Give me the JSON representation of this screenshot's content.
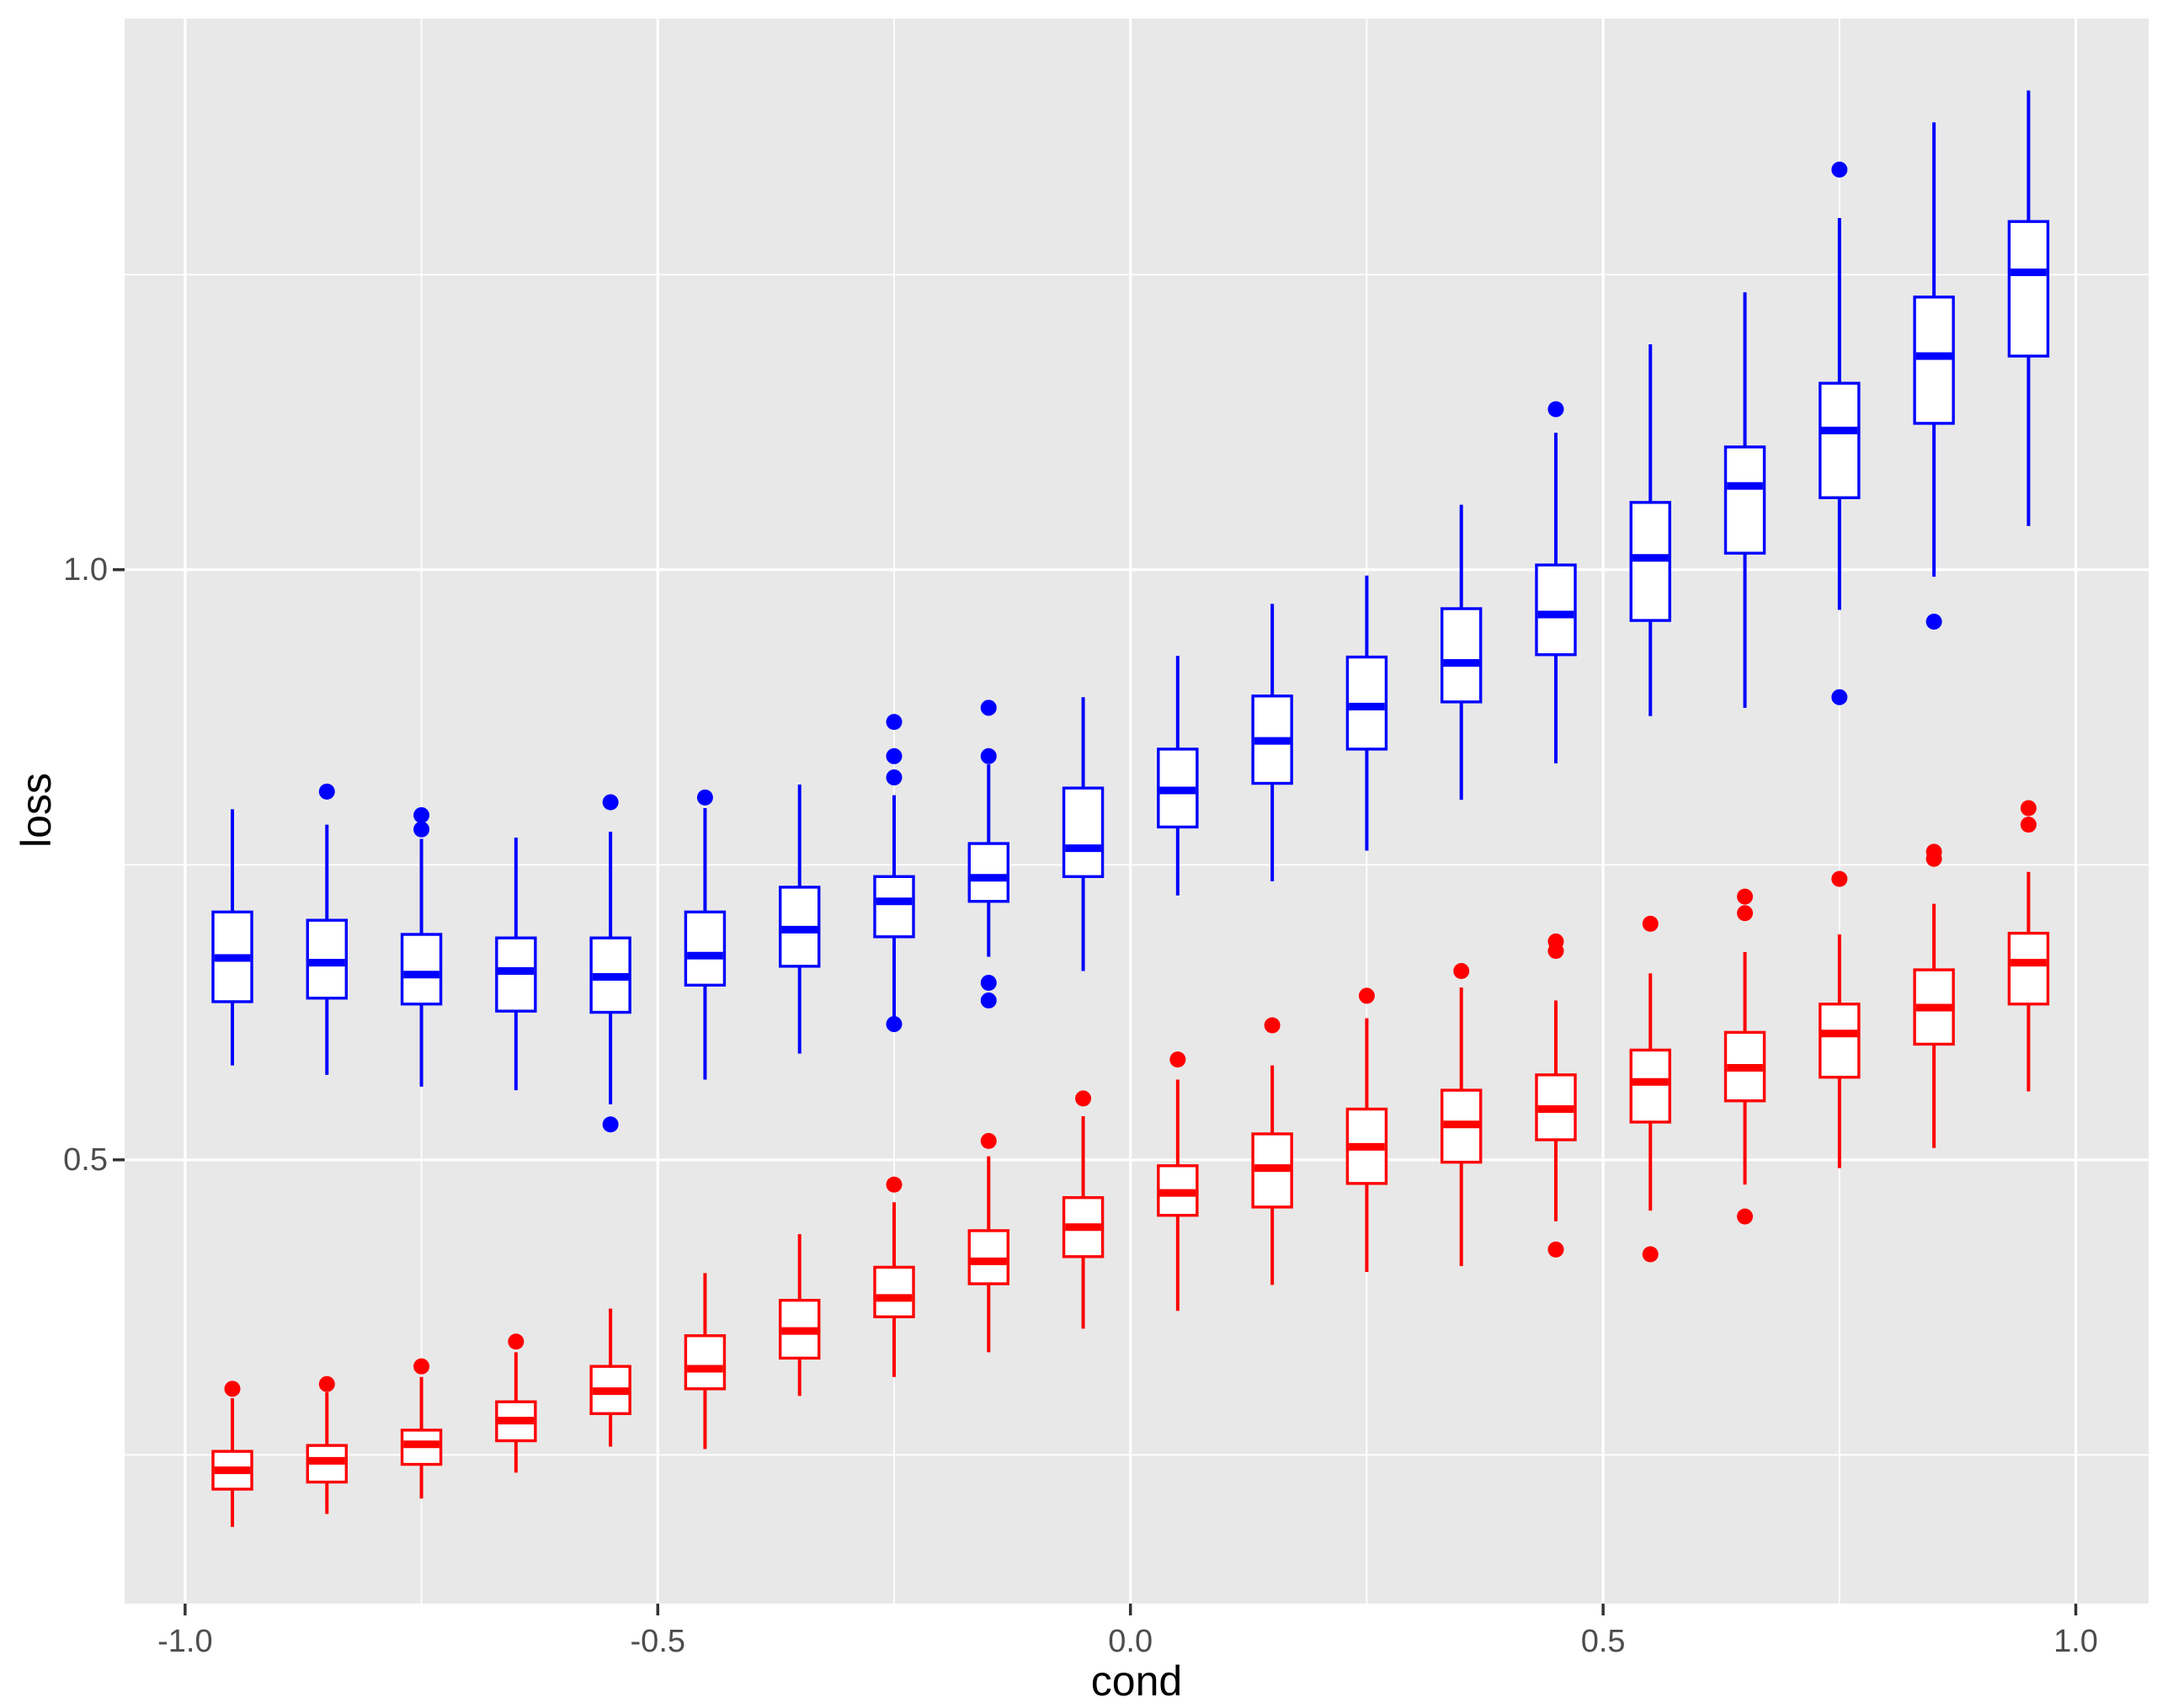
{
  "figure": {
    "background": "#FFFFFF",
    "panel_background": "#E8E8E8",
    "grid_color": "#FFFFFF",
    "tick_mark_color": "#333333",
    "axis_text_color": "#4D4D4D",
    "axis_title_color": "#000000",
    "box_fill": "#FFFFFF"
  },
  "axes": {
    "x": {
      "label": "cond",
      "ticks": [
        -1.0,
        -0.5,
        0.0,
        0.5,
        1.0
      ],
      "tick_labels": [
        "-1.0",
        "-0.5",
        "0.0",
        "0.5",
        "1.0"
      ],
      "minor_ticks": [
        -0.75,
        -0.25,
        0.25,
        0.75
      ],
      "range": [
        -1.064,
        1.077
      ]
    },
    "y": {
      "label": "loss",
      "ticks": [
        0.5,
        1.0
      ],
      "tick_labels": [
        "0.5",
        "1.0"
      ],
      "minor_ticks": [
        0.25,
        0.75,
        1.25
      ],
      "range": [
        0.124,
        1.467
      ]
    }
  },
  "chart_data": {
    "type": "boxplot",
    "title": "",
    "xlabel": "cond",
    "ylabel": "loss",
    "grid": true,
    "legend": false,
    "box_width_x": 0.041,
    "series": [
      {
        "name": "blue",
        "color": "#0000FF",
        "boxes": [
          {
            "x": -0.95,
            "whislo": 0.58,
            "q1": 0.634,
            "med": 0.671,
            "q3": 0.71,
            "whishi": 0.797,
            "outliers": []
          },
          {
            "x": -0.85,
            "whislo": 0.572,
            "q1": 0.637,
            "med": 0.667,
            "q3": 0.703,
            "whishi": 0.784,
            "outliers": [
              0.812
            ]
          },
          {
            "x": -0.75,
            "whislo": 0.562,
            "q1": 0.632,
            "med": 0.657,
            "q3": 0.691,
            "whishi": 0.772,
            "outliers": [
              0.792,
              0.78
            ]
          },
          {
            "x": -0.65,
            "whislo": 0.559,
            "q1": 0.626,
            "med": 0.66,
            "q3": 0.688,
            "whishi": 0.773,
            "outliers": []
          },
          {
            "x": -0.55,
            "whislo": 0.547,
            "q1": 0.625,
            "med": 0.655,
            "q3": 0.688,
            "whishi": 0.778,
            "outliers": [
              0.803,
              0.53
            ]
          },
          {
            "x": -0.45,
            "whislo": 0.568,
            "q1": 0.648,
            "med": 0.673,
            "q3": 0.71,
            "whishi": 0.798,
            "outliers": [
              0.807
            ]
          },
          {
            "x": -0.35,
            "whislo": 0.59,
            "q1": 0.664,
            "med": 0.695,
            "q3": 0.731,
            "whishi": 0.818,
            "outliers": []
          },
          {
            "x": -0.25,
            "whislo": 0.616,
            "q1": 0.689,
            "med": 0.719,
            "q3": 0.74,
            "whishi": 0.809,
            "outliers": [
              0.871,
              0.842,
              0.824,
              0.615
            ]
          },
          {
            "x": -0.15,
            "whislo": 0.672,
            "q1": 0.719,
            "med": 0.739,
            "q3": 0.768,
            "whishi": 0.835,
            "outliers": [
              0.883,
              0.842,
              0.65,
              0.635
            ]
          },
          {
            "x": -0.05,
            "whislo": 0.66,
            "q1": 0.74,
            "med": 0.764,
            "q3": 0.815,
            "whishi": 0.892,
            "outliers": []
          },
          {
            "x": 0.05,
            "whislo": 0.724,
            "q1": 0.782,
            "med": 0.813,
            "q3": 0.848,
            "whishi": 0.927,
            "outliers": []
          },
          {
            "x": 0.15,
            "whislo": 0.736,
            "q1": 0.819,
            "med": 0.855,
            "q3": 0.893,
            "whishi": 0.971,
            "outliers": []
          },
          {
            "x": 0.25,
            "whislo": 0.762,
            "q1": 0.848,
            "med": 0.884,
            "q3": 0.926,
            "whishi": 0.995,
            "outliers": []
          },
          {
            "x": 0.35,
            "whislo": 0.805,
            "q1": 0.888,
            "med": 0.921,
            "q3": 0.967,
            "whishi": 1.055,
            "outliers": []
          },
          {
            "x": 0.45,
            "whislo": 0.836,
            "q1": 0.928,
            "med": 0.962,
            "q3": 1.004,
            "whishi": 1.116,
            "outliers": [
              1.136
            ]
          },
          {
            "x": 0.55,
            "whislo": 0.876,
            "q1": 0.957,
            "med": 1.01,
            "q3": 1.057,
            "whishi": 1.191,
            "outliers": []
          },
          {
            "x": 0.65,
            "whislo": 0.883,
            "q1": 1.014,
            "med": 1.071,
            "q3": 1.104,
            "whishi": 1.235,
            "outliers": []
          },
          {
            "x": 0.75,
            "whislo": 0.966,
            "q1": 1.061,
            "med": 1.118,
            "q3": 1.158,
            "whishi": 1.298,
            "outliers": [
              1.339,
              0.892
            ]
          },
          {
            "x": 0.85,
            "whislo": 0.994,
            "q1": 1.124,
            "med": 1.181,
            "q3": 1.231,
            "whishi": 1.379,
            "outliers": [
              0.956
            ]
          },
          {
            "x": 0.95,
            "whislo": 1.037,
            "q1": 1.181,
            "med": 1.252,
            "q3": 1.295,
            "whishi": 1.406,
            "outliers": []
          }
        ]
      },
      {
        "name": "red",
        "color": "#FF0000",
        "boxes": [
          {
            "x": -0.95,
            "whislo": 0.189,
            "q1": 0.221,
            "med": 0.237,
            "q3": 0.253,
            "whishi": 0.298,
            "outliers": [
              0.306
            ]
          },
          {
            "x": -0.85,
            "whislo": 0.2,
            "q1": 0.227,
            "med": 0.245,
            "q3": 0.258,
            "whishi": 0.303,
            "outliers": [
              0.31
            ]
          },
          {
            "x": -0.75,
            "whislo": 0.213,
            "q1": 0.242,
            "med": 0.259,
            "q3": 0.271,
            "whishi": 0.316,
            "outliers": [
              0.325
            ]
          },
          {
            "x": -0.65,
            "whislo": 0.235,
            "q1": 0.262,
            "med": 0.279,
            "q3": 0.295,
            "whishi": 0.337,
            "outliers": [
              0.346
            ]
          },
          {
            "x": -0.55,
            "whislo": 0.257,
            "q1": 0.285,
            "med": 0.304,
            "q3": 0.325,
            "whishi": 0.374,
            "outliers": []
          },
          {
            "x": -0.45,
            "whislo": 0.255,
            "q1": 0.306,
            "med": 0.323,
            "q3": 0.351,
            "whishi": 0.404,
            "outliers": []
          },
          {
            "x": -0.35,
            "whislo": 0.3,
            "q1": 0.332,
            "med": 0.355,
            "q3": 0.381,
            "whishi": 0.437,
            "outliers": []
          },
          {
            "x": -0.25,
            "whislo": 0.316,
            "q1": 0.367,
            "med": 0.383,
            "q3": 0.409,
            "whishi": 0.464,
            "outliers": [
              0.479
            ]
          },
          {
            "x": -0.15,
            "whislo": 0.337,
            "q1": 0.395,
            "med": 0.414,
            "q3": 0.44,
            "whishi": 0.503,
            "outliers": [
              0.516
            ]
          },
          {
            "x": -0.05,
            "whislo": 0.357,
            "q1": 0.418,
            "med": 0.443,
            "q3": 0.468,
            "whishi": 0.537,
            "outliers": [
              0.552
            ]
          },
          {
            "x": 0.05,
            "whislo": 0.372,
            "q1": 0.453,
            "med": 0.472,
            "q3": 0.495,
            "whishi": 0.568,
            "outliers": [
              0.585
            ]
          },
          {
            "x": 0.15,
            "whislo": 0.394,
            "q1": 0.46,
            "med": 0.493,
            "q3": 0.522,
            "whishi": 0.58,
            "outliers": [
              0.614
            ]
          },
          {
            "x": 0.25,
            "whislo": 0.405,
            "q1": 0.48,
            "med": 0.511,
            "q3": 0.543,
            "whishi": 0.62,
            "outliers": [
              0.639
            ]
          },
          {
            "x": 0.35,
            "whislo": 0.41,
            "q1": 0.498,
            "med": 0.53,
            "q3": 0.559,
            "whishi": 0.646,
            "outliers": [
              0.66
            ]
          },
          {
            "x": 0.45,
            "whislo": 0.448,
            "q1": 0.517,
            "med": 0.543,
            "q3": 0.572,
            "whishi": 0.635,
            "outliers": [
              0.685,
              0.677,
              0.424
            ]
          },
          {
            "x": 0.55,
            "whislo": 0.457,
            "q1": 0.532,
            "med": 0.566,
            "q3": 0.593,
            "whishi": 0.658,
            "outliers": [
              0.7,
              0.42
            ]
          },
          {
            "x": 0.65,
            "whislo": 0.479,
            "q1": 0.55,
            "med": 0.578,
            "q3": 0.608,
            "whishi": 0.676,
            "outliers": [
              0.723,
              0.709,
              0.452
            ]
          },
          {
            "x": 0.75,
            "whislo": 0.493,
            "q1": 0.57,
            "med": 0.607,
            "q3": 0.632,
            "whishi": 0.691,
            "outliers": [
              0.738
            ]
          },
          {
            "x": 0.85,
            "whislo": 0.51,
            "q1": 0.598,
            "med": 0.629,
            "q3": 0.661,
            "whishi": 0.717,
            "outliers": [
              0.761,
              0.755
            ]
          },
          {
            "x": 0.95,
            "whislo": 0.558,
            "q1": 0.632,
            "med": 0.667,
            "q3": 0.692,
            "whishi": 0.744,
            "outliers": [
              0.798,
              0.784
            ]
          }
        ]
      }
    ]
  }
}
